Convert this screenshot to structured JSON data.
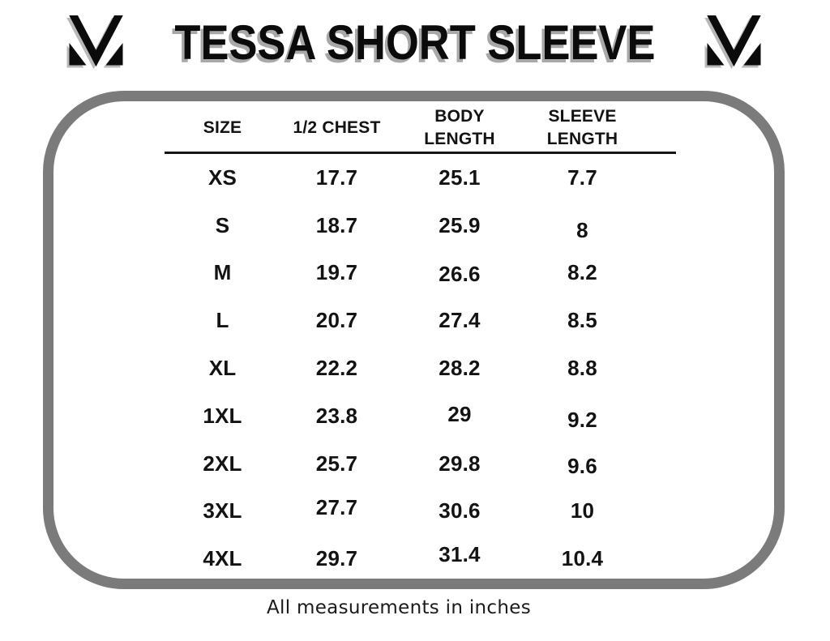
{
  "header": {
    "title": "TESSA SHORT SLEEVE",
    "left_logo": "brand-monogram-icon",
    "right_logo": "brand-monogram-icon"
  },
  "table": {
    "columns": [
      {
        "lines": [
          "SIZE"
        ]
      },
      {
        "lines": [
          "1/2 CHEST"
        ]
      },
      {
        "lines": [
          "BODY",
          "LENGTH"
        ]
      },
      {
        "lines": [
          "SLEEVE",
          "LENGTH"
        ]
      }
    ],
    "rows": [
      [
        "XS",
        "17.7",
        "25.1",
        "7.7"
      ],
      [
        "S",
        "18.7",
        "25.9",
        "8"
      ],
      [
        "M",
        "19.7",
        "26.6",
        "8.2"
      ],
      [
        "L",
        "20.7",
        "27.4",
        "8.5"
      ],
      [
        "XL",
        "22.2",
        "28.2",
        "8.8"
      ],
      [
        "1XL",
        "23.8",
        "29",
        "9.2"
      ],
      [
        "2XL",
        "25.7",
        "29.8",
        "9.6"
      ],
      [
        "3XL",
        "27.7",
        "30.6",
        "10"
      ],
      [
        "4XL",
        "29.7",
        "31.4",
        "10.4"
      ]
    ]
  },
  "footer": {
    "note": "All measurements in inches"
  },
  "colors": {
    "border_gray": "#7b7b7b",
    "text": "#131313",
    "title_shadow_alpha": "0.34"
  },
  "chart_data": {
    "type": "table",
    "title": "TESSA SHORT SLEEVE",
    "columns": [
      "SIZE",
      "1/2 CHEST",
      "BODY LENGTH",
      "SLEEVE LENGTH"
    ],
    "rows": [
      [
        "XS",
        17.7,
        25.1,
        7.7
      ],
      [
        "S",
        18.7,
        25.9,
        8
      ],
      [
        "M",
        19.7,
        26.6,
        8.2
      ],
      [
        "L",
        20.7,
        27.4,
        8.5
      ],
      [
        "XL",
        22.2,
        28.2,
        8.8
      ],
      [
        "1XL",
        23.8,
        29,
        9.2
      ],
      [
        "2XL",
        25.7,
        29.8,
        9.6
      ],
      [
        "3XL",
        27.7,
        30.6,
        10
      ],
      [
        "4XL",
        29.7,
        31.4,
        10.4
      ]
    ],
    "units_note": "All measurements in inches",
    "layout_hints": {
      "header_rule": true,
      "rounded_border": true
    }
  }
}
